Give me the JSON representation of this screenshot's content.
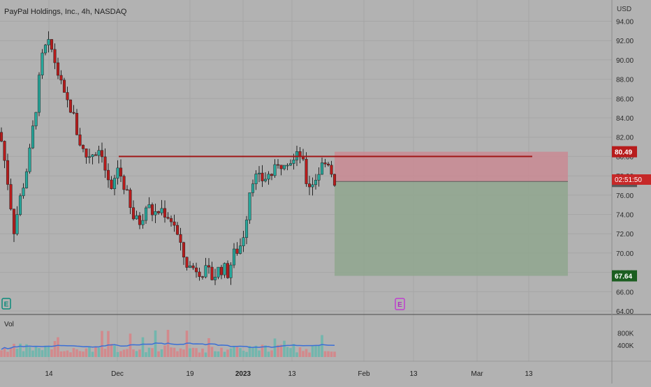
{
  "title": "PayPal Holdings, Inc., 4h, NASDAQ",
  "currency": "USD",
  "price_ticks": [
    "94.00",
    "92.00",
    "90.00",
    "88.00",
    "86.00",
    "84.00",
    "82.00",
    "80.00",
    "78.00",
    "76.00",
    "74.00",
    "72.00",
    "70.00",
    "68.00",
    "66.00",
    "64.00"
  ],
  "volume_label": "Vol",
  "volume_ticks": [
    "800K",
    "400K"
  ],
  "time_ticks": [
    "14",
    "Dec",
    "19",
    "2023",
    "13",
    "Feb",
    "13",
    "Mar",
    "13"
  ],
  "earnings_marker": "E",
  "badges": {
    "stop": "80.49",
    "last": "77.41",
    "countdown": "02:51:50",
    "target": "67.64"
  },
  "colors": {
    "background": "#b2b2b2",
    "bull": "#26a69a",
    "bear": "#b71c1c",
    "resistance": "#a01818",
    "stop_zone": "#c98a93",
    "target_zone": "#8fa68e"
  },
  "chart_data": {
    "type": "candlestick",
    "title": "PayPal Holdings, Inc., 4h, NASDAQ",
    "xlabel": "",
    "ylabel": "USD",
    "ylim": [
      64,
      95
    ],
    "volume_ylim": [
      0,
      1000000
    ],
    "resistance_level": 80.0,
    "position": {
      "entry": 77.41,
      "stop": 80.49,
      "target": 67.64
    },
    "grid": true
  }
}
